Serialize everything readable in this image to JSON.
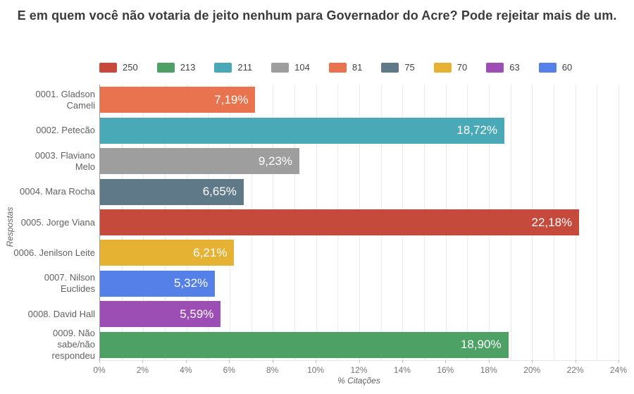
{
  "title": "E em quem você não votaria de jeito nenhum para Governador do Acre? Pode rejeitar mais de um.",
  "chart_data": {
    "type": "bar",
    "orientation": "horizontal",
    "title": "E em quem você não votaria de jeito nenhum para Governador do Acre? Pode rejeitar mais de um.",
    "categories": [
      "0001. Gladson Cameli",
      "0002. Petecão",
      "0003. Flaviano Melo",
      "0004. Mara Rocha",
      "0005. Jorge Viana",
      "0006. Jenilson Leite",
      "0007. Nilson Euclides",
      "0008. David Hall",
      "0009. Não sabe/não respondeu"
    ],
    "values": [
      7.19,
      18.72,
      9.23,
      6.65,
      22.18,
      6.21,
      5.32,
      5.59,
      18.9
    ],
    "value_labels": [
      "7,19%",
      "18,72%",
      "9,23%",
      "6,65%",
      "22,18%",
      "6,21%",
      "5,32%",
      "5,59%",
      "18,90%"
    ],
    "bar_colors": [
      "#e8734e",
      "#4aa9b7",
      "#9e9e9e",
      "#5f7989",
      "#c64a3b",
      "#e5b234",
      "#5580e8",
      "#9c4eb4",
      "#4da164"
    ],
    "legend": [
      {
        "label": "250",
        "color": "#c64a3b"
      },
      {
        "label": "213",
        "color": "#4da164"
      },
      {
        "label": "211",
        "color": "#4aa9b7"
      },
      {
        "label": "104",
        "color": "#9e9e9e"
      },
      {
        "label": "81",
        "color": "#e8734e"
      },
      {
        "label": "75",
        "color": "#5f7989"
      },
      {
        "label": "70",
        "color": "#e5b234"
      },
      {
        "label": "63",
        "color": "#9c4eb4"
      },
      {
        "label": "60",
        "color": "#5580e8"
      }
    ],
    "xlabel": "% Citações",
    "ylabel": "Respostas",
    "xlim": [
      0,
      24
    ],
    "x_tick_step": 2,
    "x_tick_labels": [
      "0%",
      "2%",
      "4%",
      "6%",
      "8%",
      "10%",
      "12%",
      "14%",
      "16%",
      "18%",
      "20%",
      "22%",
      "24%"
    ],
    "grid": "minor vertical gridlines every 1%, on"
  }
}
